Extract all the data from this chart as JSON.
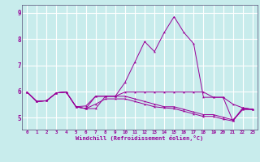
{
  "xlabel": "Windchill (Refroidissement éolien,°C)",
  "bg_color": "#c8ecec",
  "grid_color": "#ffffff",
  "line_color": "#990099",
  "spine_color": "#666688",
  "xlim": [
    -0.5,
    23.5
  ],
  "ylim": [
    4.55,
    9.3
  ],
  "xticks": [
    0,
    1,
    2,
    3,
    4,
    5,
    6,
    7,
    8,
    9,
    10,
    11,
    12,
    13,
    14,
    15,
    16,
    17,
    18,
    19,
    20,
    21,
    22,
    23
  ],
  "yticks": [
    5,
    6,
    7,
    8,
    9
  ],
  "lines": [
    [
      5.98,
      5.62,
      5.65,
      5.95,
      5.98,
      5.42,
      5.35,
      5.35,
      5.82,
      5.82,
      6.35,
      7.12,
      7.9,
      7.52,
      8.25,
      8.85,
      8.25,
      7.82,
      5.78,
      5.78,
      5.78,
      4.88,
      5.38,
      5.32
    ],
    [
      5.98,
      5.62,
      5.65,
      5.95,
      5.98,
      5.42,
      5.35,
      5.82,
      5.82,
      5.82,
      5.98,
      5.98,
      5.98,
      5.98,
      5.98,
      5.98,
      5.98,
      5.98,
      5.98,
      5.78,
      5.78,
      5.52,
      5.38,
      5.32
    ],
    [
      5.98,
      5.62,
      5.65,
      5.95,
      5.98,
      5.42,
      5.45,
      5.82,
      5.82,
      5.82,
      5.82,
      5.72,
      5.62,
      5.52,
      5.42,
      5.42,
      5.32,
      5.22,
      5.12,
      5.12,
      5.02,
      4.92,
      5.32,
      5.32
    ],
    [
      5.98,
      5.62,
      5.65,
      5.95,
      5.98,
      5.42,
      5.35,
      5.52,
      5.72,
      5.72,
      5.72,
      5.62,
      5.52,
      5.42,
      5.38,
      5.35,
      5.25,
      5.15,
      5.05,
      5.05,
      4.95,
      4.88,
      5.32,
      5.32
    ]
  ]
}
